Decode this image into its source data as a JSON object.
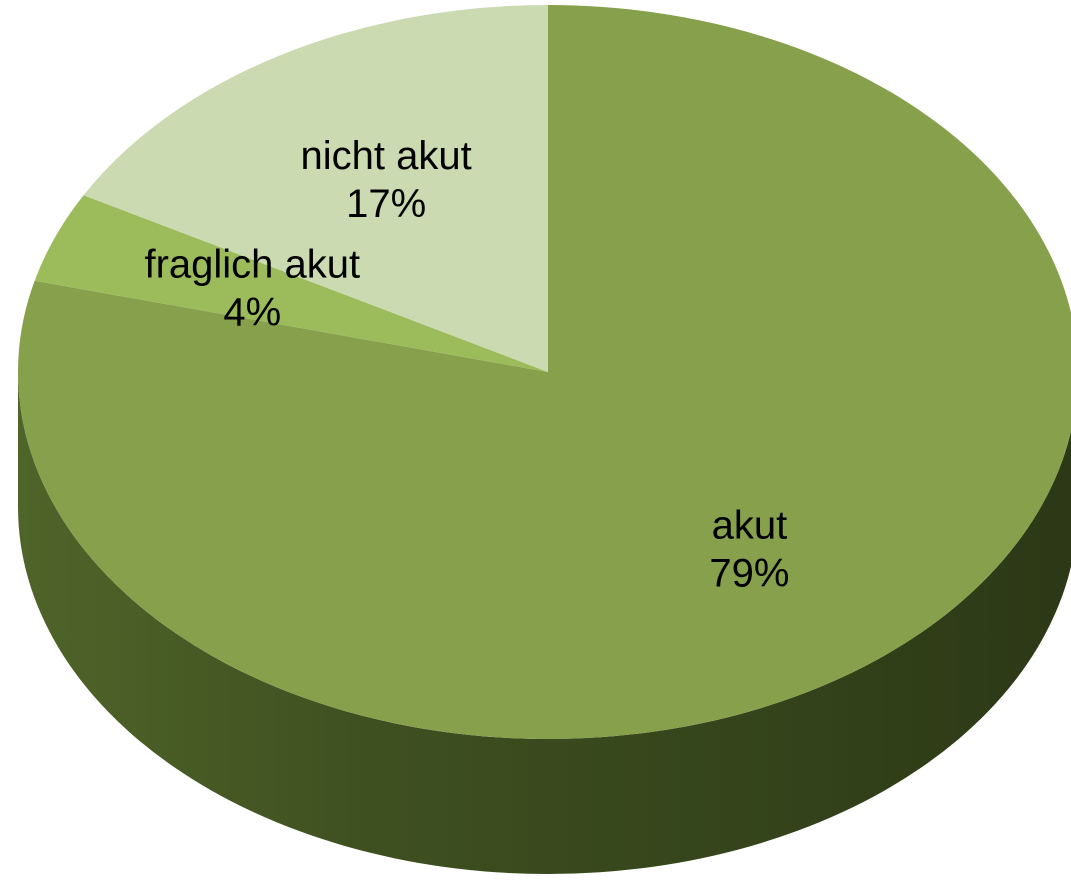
{
  "chart_data": {
    "type": "pie",
    "categories": [
      "akut",
      "fraglich akut",
      "nicht akut"
    ],
    "values": [
      79,
      4,
      17
    ],
    "value_labels": [
      "79%",
      "4%",
      "17%"
    ],
    "colors": [
      "#86a04c",
      "#9cbc5b",
      "#cbdab1"
    ]
  }
}
